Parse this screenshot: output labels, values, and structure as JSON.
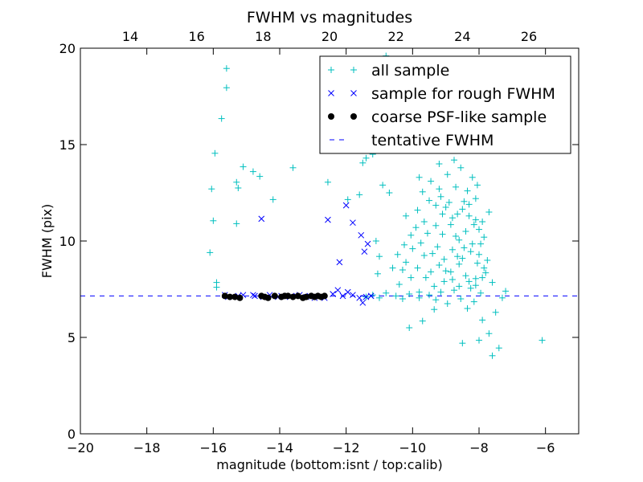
{
  "chart_data": {
    "type": "scatter",
    "title": "FWHM vs magnitudes",
    "xlabel": "magnitude (bottom:isnt / top:calib)",
    "ylabel": "FWHM (pix)",
    "xlim": [
      -20,
      -5
    ],
    "ylim": [
      0,
      20
    ],
    "top_xlim": [
      12.5,
      27.5
    ],
    "x_ticks": [
      -20,
      -18,
      -16,
      -14,
      -12,
      -10,
      -8,
      -6
    ],
    "x_tick_labels": [
      "−20",
      "−18",
      "−16",
      "−14",
      "−12",
      "−10",
      "−8",
      "−6"
    ],
    "top_x_ticks": [
      14,
      16,
      18,
      20,
      22,
      24,
      26
    ],
    "top_x_tick_labels": [
      "14",
      "16",
      "18",
      "20",
      "22",
      "24",
      "26"
    ],
    "y_ticks": [
      0,
      5,
      10,
      15,
      20
    ],
    "y_tick_labels": [
      "0",
      "5",
      "10",
      "15",
      "20"
    ],
    "grid": false,
    "legend_position": "top-right",
    "tentative_fwhm": 7.15,
    "series": [
      {
        "name": "all sample",
        "marker": "plus",
        "color": "#00bfbf",
        "points": [
          [
            -15.6,
            18.95
          ],
          [
            -15.6,
            17.95
          ],
          [
            -15.75,
            16.35
          ],
          [
            -15.95,
            14.55
          ],
          [
            -16.05,
            12.7
          ],
          [
            -16.0,
            11.05
          ],
          [
            -16.1,
            9.4
          ],
          [
            -15.9,
            7.85
          ],
          [
            -15.9,
            7.6
          ],
          [
            -15.1,
            13.85
          ],
          [
            -14.8,
            13.6
          ],
          [
            -14.6,
            13.35
          ],
          [
            -15.3,
            13.05
          ],
          [
            -15.25,
            12.75
          ],
          [
            -14.2,
            12.15
          ],
          [
            -15.3,
            10.9
          ],
          [
            -13.6,
            13.8
          ],
          [
            -12.55,
            13.05
          ],
          [
            -11.95,
            12.15
          ],
          [
            -11.6,
            12.4
          ],
          [
            -11.4,
            14.3
          ],
          [
            -11.5,
            14.05
          ],
          [
            -11.2,
            14.5
          ],
          [
            -10.8,
            19.6
          ],
          [
            -10.9,
            12.9
          ],
          [
            -10.7,
            12.5
          ],
          [
            -10.2,
            11.3
          ],
          [
            -11.1,
            10.0
          ],
          [
            -11.0,
            9.2
          ],
          [
            -11.05,
            8.3
          ],
          [
            -10.6,
            8.6
          ],
          [
            -10.4,
            7.75
          ],
          [
            -10.2,
            8.9
          ],
          [
            -10.0,
            9.6
          ],
          [
            -9.8,
            7.35
          ],
          [
            -10.1,
            5.5
          ],
          [
            -11.4,
            7.1
          ],
          [
            -11.2,
            7.2
          ],
          [
            -11.0,
            7.05
          ],
          [
            -10.8,
            7.3
          ],
          [
            -10.5,
            7.15
          ],
          [
            -10.3,
            7.0
          ],
          [
            -10.1,
            7.25
          ],
          [
            -9.8,
            7.05
          ],
          [
            -9.5,
            7.2
          ],
          [
            -9.3,
            6.95
          ],
          [
            -9.7,
            5.85
          ],
          [
            -9.35,
            6.45
          ],
          [
            -8.5,
            4.7
          ],
          [
            -8.0,
            4.85
          ],
          [
            -7.6,
            4.05
          ],
          [
            -7.4,
            4.45
          ],
          [
            -6.1,
            4.85
          ],
          [
            -7.7,
            5.2
          ],
          [
            -7.9,
            5.9
          ],
          [
            -7.5,
            6.3
          ],
          [
            -7.2,
            7.4
          ],
          [
            -7.3,
            7.05
          ],
          [
            -7.6,
            7.85
          ],
          [
            -7.8,
            8.35
          ],
          [
            -7.9,
            11.0
          ],
          [
            -7.7,
            11.5
          ],
          [
            -8.1,
            11.1
          ],
          [
            -8.3,
            11.9
          ],
          [
            -8.0,
            10.6
          ],
          [
            -7.95,
            9.85
          ],
          [
            -8.5,
            9.1
          ],
          [
            -8.7,
            10.25
          ],
          [
            -8.85,
            8.4
          ],
          [
            -9.05,
            7.9
          ],
          [
            -9.2,
            8.75
          ],
          [
            -9.4,
            9.35
          ],
          [
            -9.6,
            8.1
          ],
          [
            -9.55,
            10.4
          ],
          [
            -9.75,
            9.9
          ],
          [
            -9.65,
            11.0
          ],
          [
            -9.85,
            11.6
          ],
          [
            -9.7,
            12.55
          ],
          [
            -9.45,
            13.1
          ],
          [
            -9.3,
            11.85
          ],
          [
            -9.15,
            12.3
          ],
          [
            -8.95,
            13.45
          ],
          [
            -8.75,
            14.2
          ],
          [
            -8.55,
            13.8
          ],
          [
            -8.35,
            12.6
          ],
          [
            -8.2,
            13.3
          ],
          [
            -8.05,
            12.9
          ],
          [
            -8.45,
            12.05
          ],
          [
            -8.65,
            11.4
          ],
          [
            -8.85,
            10.85
          ],
          [
            -9.1,
            10.35
          ],
          [
            -9.25,
            9.7
          ],
          [
            -9.05,
            9.05
          ],
          [
            -8.8,
            9.55
          ],
          [
            -8.6,
            8.8
          ],
          [
            -8.4,
            8.2
          ],
          [
            -8.25,
            7.55
          ],
          [
            -8.1,
            8.05
          ],
          [
            -7.95,
            7.3
          ],
          [
            -8.15,
            6.85
          ],
          [
            -8.35,
            6.5
          ],
          [
            -8.55,
            7.0
          ],
          [
            -8.75,
            7.45
          ],
          [
            -8.95,
            6.75
          ],
          [
            -9.15,
            7.35
          ],
          [
            -9.35,
            7.65
          ],
          [
            -8.0,
            9.3
          ],
          [
            -8.2,
            9.85
          ],
          [
            -8.4,
            10.5
          ],
          [
            -8.6,
            10.05
          ],
          [
            -8.8,
            11.2
          ],
          [
            -9.0,
            11.75
          ],
          [
            -9.2,
            12.7
          ],
          [
            -9.5,
            12.1
          ],
          [
            -9.9,
            10.7
          ],
          [
            -10.05,
            10.3
          ],
          [
            -10.25,
            9.8
          ],
          [
            -10.45,
            9.3
          ],
          [
            -10.3,
            8.5
          ],
          [
            -10.05,
            8.1
          ],
          [
            -9.85,
            8.6
          ],
          [
            -9.65,
            9.25
          ],
          [
            -9.45,
            8.4
          ],
          [
            -8.15,
            10.85
          ],
          [
            -7.85,
            10.2
          ],
          [
            -7.75,
            9.0
          ],
          [
            -7.85,
            8.6
          ],
          [
            -8.05,
            8.85
          ],
          [
            -8.25,
            9.45
          ],
          [
            -8.45,
            9.65
          ],
          [
            -8.65,
            9.2
          ],
          [
            -8.5,
            11.65
          ],
          [
            -8.3,
            11.3
          ],
          [
            -8.1,
            12.2
          ],
          [
            -8.7,
            12.8
          ],
          [
            -8.9,
            12.0
          ],
          [
            -9.1,
            11.4
          ],
          [
            -9.3,
            10.8
          ],
          [
            -9.0,
            8.45
          ],
          [
            -8.8,
            8.0
          ],
          [
            -8.6,
            7.65
          ],
          [
            -8.3,
            7.9
          ],
          [
            -8.1,
            7.7
          ],
          [
            -7.9,
            8.1
          ],
          [
            -9.5,
            14.8
          ],
          [
            -9.0,
            15.2
          ],
          [
            -8.7,
            15.5
          ],
          [
            -8.4,
            14.9
          ],
          [
            -9.2,
            14.0
          ],
          [
            -9.8,
            13.3
          ]
        ]
      },
      {
        "name": "sample for rough FWHM",
        "marker": "x",
        "color": "#0000ff",
        "points": [
          [
            -15.65,
            7.2
          ],
          [
            -15.4,
            7.1
          ],
          [
            -15.1,
            7.2
          ],
          [
            -14.75,
            7.15
          ],
          [
            -14.5,
            7.1
          ],
          [
            -14.3,
            7.2
          ],
          [
            -13.95,
            7.15
          ],
          [
            -13.7,
            7.1
          ],
          [
            -13.4,
            7.2
          ],
          [
            -13.1,
            7.15
          ],
          [
            -12.85,
            7.1
          ],
          [
            -12.4,
            7.25
          ],
          [
            -12.25,
            7.45
          ],
          [
            -12.1,
            7.15
          ],
          [
            -11.95,
            7.35
          ],
          [
            -11.8,
            7.2
          ],
          [
            -11.6,
            7.05
          ],
          [
            -11.5,
            6.8
          ],
          [
            -11.4,
            7.1
          ],
          [
            -11.25,
            7.15
          ],
          [
            -14.55,
            11.15
          ],
          [
            -12.55,
            11.1
          ],
          [
            -12.0,
            11.85
          ],
          [
            -11.8,
            10.95
          ],
          [
            -11.55,
            10.3
          ],
          [
            -11.35,
            9.85
          ],
          [
            -11.45,
            9.45
          ],
          [
            -12.2,
            8.9
          ],
          [
            -12.95,
            7.05
          ],
          [
            -13.2,
            7.1
          ],
          [
            -13.5,
            7.15
          ],
          [
            -14.05,
            7.1
          ],
          [
            -14.8,
            7.2
          ],
          [
            -15.25,
            7.15
          ],
          [
            -15.55,
            7.1
          ],
          [
            -12.65,
            7.05
          ]
        ]
      },
      {
        "name": "coarse PSF-like sample",
        "marker": "dot",
        "color": "#000000",
        "points": [
          [
            -15.65,
            7.15
          ],
          [
            -15.5,
            7.1
          ],
          [
            -15.35,
            7.1
          ],
          [
            -15.2,
            7.05
          ],
          [
            -14.55,
            7.15
          ],
          [
            -14.45,
            7.1
          ],
          [
            -14.35,
            7.05
          ],
          [
            -14.15,
            7.15
          ],
          [
            -13.95,
            7.1
          ],
          [
            -13.85,
            7.15
          ],
          [
            -13.75,
            7.15
          ],
          [
            -13.6,
            7.1
          ],
          [
            -13.45,
            7.15
          ],
          [
            -13.3,
            7.05
          ],
          [
            -13.2,
            7.1
          ],
          [
            -13.05,
            7.15
          ],
          [
            -12.95,
            7.1
          ],
          [
            -12.85,
            7.15
          ],
          [
            -12.75,
            7.1
          ],
          [
            -12.65,
            7.15
          ]
        ]
      }
    ],
    "legend": [
      {
        "label": "all sample",
        "marker": "plus",
        "color": "#00bfbf"
      },
      {
        "label": "sample for rough FWHM",
        "marker": "x",
        "color": "#0000ff"
      },
      {
        "label": "coarse PSF-like sample",
        "marker": "dot",
        "color": "#000000"
      },
      {
        "label": "tentative FWHM",
        "marker": "dashed-line",
        "color": "#0000ff"
      }
    ]
  }
}
